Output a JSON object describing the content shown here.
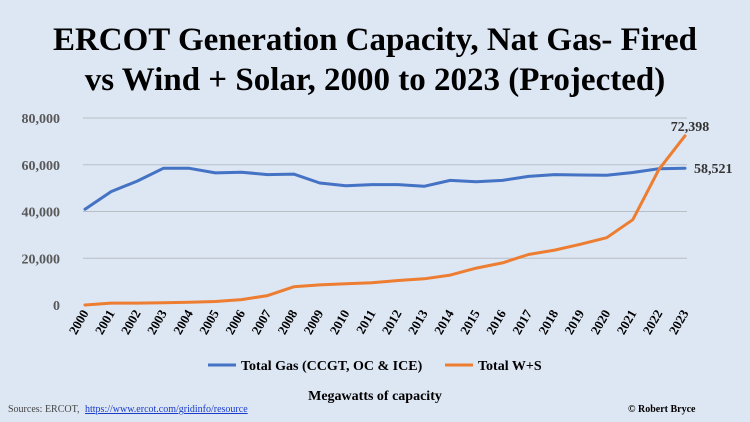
{
  "colors": {
    "background": "#dde6f3",
    "gas": "#4472c4",
    "ws": "#ed7d31",
    "grid": "#b8bec6"
  },
  "chart_data": {
    "type": "line",
    "title_lines": [
      "ERCOT Generation Capacity, Nat Gas- Fired",
      "vs Wind + Solar, 2000 to 2023 (Projected)"
    ],
    "xlabel": "Megawatts of capacity",
    "ylabel": "",
    "ylim": [
      0,
      80000
    ],
    "yticks": [
      "0",
      "20,000",
      "40,000",
      "60,000",
      "80,000"
    ],
    "ytick_values": [
      0,
      20000,
      40000,
      60000,
      80000
    ],
    "categories": [
      "2000",
      "2001",
      "2002",
      "2003",
      "2004",
      "2005",
      "2006",
      "2007",
      "2008",
      "2009",
      "2010",
      "2011",
      "2012",
      "2013",
      "2014",
      "2015",
      "2016",
      "2017",
      "2018",
      "2019",
      "2020",
      "2021",
      "2022",
      "2023"
    ],
    "series": [
      {
        "name": "Total Gas (CCGT, OC & ICE)",
        "color_key": "gas",
        "values": [
          41000,
          48500,
          53000,
          58500,
          58500,
          56500,
          56800,
          55800,
          56000,
          52200,
          51000,
          51500,
          51500,
          50800,
          53300,
          52700,
          53300,
          55000,
          55800,
          55600,
          55500,
          56700,
          58300,
          58521
        ]
      },
      {
        "name": "Total W+S",
        "color_key": "ws",
        "values": [
          0,
          800,
          800,
          1000,
          1200,
          1500,
          2300,
          4000,
          7800,
          8600,
          9100,
          9500,
          10500,
          11200,
          12800,
          15800,
          18000,
          21600,
          23500,
          26000,
          28800,
          36500,
          58000,
          72398
        ]
      }
    ],
    "end_labels": {
      "gas": "58,521",
      "ws": "72,398"
    },
    "grid": true,
    "legend_position": "bottom"
  },
  "footer": {
    "source_prefix": "Sources: ERCOT, ",
    "source_link": "https://www.ercot.com/gridinfo/resource",
    "credit": "© Robert Bryce"
  }
}
